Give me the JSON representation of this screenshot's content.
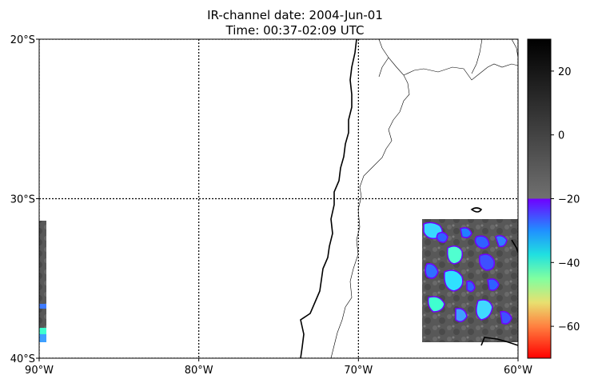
{
  "title": {
    "line1": "IR-channel date: 2004-Jun-01",
    "line2": "Time: 00:37-02:09 UTC"
  },
  "map": {
    "lon_range": [
      -90,
      -60
    ],
    "lat_range": [
      -40,
      -20
    ],
    "lon_ticks": [
      {
        "value": -90,
        "label": "90°W"
      },
      {
        "value": -80,
        "label": "80°W"
      },
      {
        "value": -70,
        "label": "70°W"
      },
      {
        "value": -60,
        "label": "60°W"
      }
    ],
    "lat_ticks": [
      {
        "value": -20,
        "label": "20°S"
      },
      {
        "value": -30,
        "label": "30°S"
      },
      {
        "value": -40,
        "label": "40°S"
      }
    ],
    "gridlines": "dotted",
    "data_swaths": [
      {
        "lon": [
          -90,
          -89.6
        ],
        "lat": [
          -31.3,
          -39
        ]
      },
      {
        "lon": [
          -66,
          -60
        ],
        "lat": [
          -31.2,
          -39
        ]
      }
    ]
  },
  "colorbar": {
    "range": [
      -70,
      30
    ],
    "gray_threshold": -20,
    "ticks": [
      {
        "value": 20,
        "label": "20"
      },
      {
        "value": 0,
        "label": "0"
      },
      {
        "value": -20,
        "label": "−20"
      },
      {
        "value": -40,
        "label": "−40"
      },
      {
        "value": -60,
        "label": "−60"
      }
    ]
  }
}
